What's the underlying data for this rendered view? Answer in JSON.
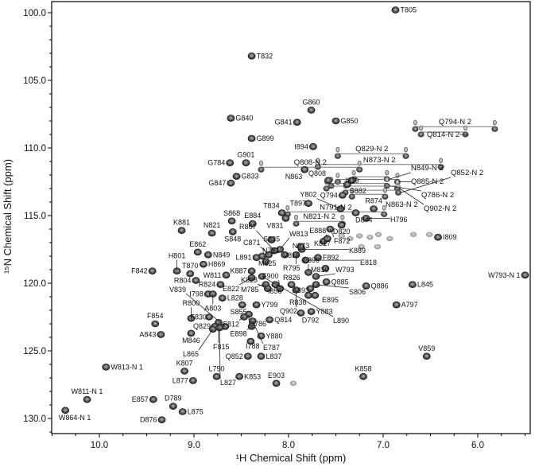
{
  "chart_data": {
    "type": "scatter",
    "title": "",
    "xlabel": "¹H Chemical Shift (ppm)",
    "ylabel": "¹⁵N Chemical Shift (ppm)",
    "xlim": [
      10.5,
      5.45
    ],
    "ylim": [
      99.2,
      131.2
    ],
    "x_reversed": true,
    "y_reversed": true,
    "grid": false,
    "x_ticks": [
      "10.0",
      "9.0",
      "8.0",
      "7.0",
      "6.0"
    ],
    "y_ticks": [
      "100.0",
      "105.0",
      "110.0",
      "115.0",
      "120.0",
      "125.0",
      "130.0"
    ],
    "peak_color": "#1a1a1a",
    "peaks": [
      {
        "label": "T805",
        "h": 6.87,
        "n": 99.8
      },
      {
        "label": "T832",
        "h": 8.39,
        "n": 103.2
      },
      {
        "label": "G860",
        "h": 7.76,
        "n": 107.2
      },
      {
        "label": "G840",
        "h": 8.61,
        "n": 107.8
      },
      {
        "label": "G841",
        "h": 7.91,
        "n": 108.1
      },
      {
        "label": "G850",
        "h": 7.5,
        "n": 108.0
      },
      {
        "label": "G899",
        "h": 8.39,
        "n": 109.3
      },
      {
        "label": "I894",
        "h": 7.74,
        "n": 109.9
      },
      {
        "label": "G784",
        "h": 8.62,
        "n": 111.1
      },
      {
        "label": "G901",
        "h": 8.45,
        "n": 111.1
      },
      {
        "label": "G833",
        "h": 8.55,
        "n": 112.1
      },
      {
        "label": "G847",
        "h": 8.61,
        "n": 112.6
      },
      {
        "label": "N863",
        "h": 7.83,
        "n": 111.6
      },
      {
        "label": "Q808",
        "h": 7.58,
        "n": 112.4
      },
      {
        "label": "S882",
        "h": 7.38,
        "n": 112.7
      },
      {
        "label": "Q794",
        "h": 7.43,
        "n": 113.5
      },
      {
        "label": "I819",
        "h": 7.33,
        "n": 112.4
      },
      {
        "label": "R874",
        "h": 7.1,
        "n": 114.5
      },
      {
        "label": "D844",
        "h": 7.29,
        "n": 114.8
      },
      {
        "label": "Y802",
        "h": 7.45,
        "n": 114.5
      },
      {
        "label": "T897",
        "h": 7.79,
        "n": 114.1
      },
      {
        "label": "T834",
        "h": 8.07,
        "n": 114.8
      },
      {
        "label": "V831",
        "h": 8.03,
        "n": 115.2
      },
      {
        "label": "D820",
        "h": 7.44,
        "n": 115.7
      },
      {
        "label": "F872",
        "h": 7.56,
        "n": 116.0
      },
      {
        "label": "H796",
        "h": 7.18,
        "n": 115.2
      },
      {
        "label": "I809",
        "h": 6.42,
        "n": 116.6
      },
      {
        "label": "W793-N 1",
        "h": 5.5,
        "n": 119.4
      },
      {
        "label": "Q886",
        "h": 7.18,
        "n": 120.2
      },
      {
        "label": "L845",
        "h": 6.69,
        "n": 120.1
      },
      {
        "label": "A797",
        "h": 6.86,
        "n": 121.6
      },
      {
        "label": "V859",
        "h": 6.54,
        "n": 125.4
      },
      {
        "label": "K858",
        "h": 7.21,
        "n": 126.9
      },
      {
        "label": "Y883",
        "h": 7.76,
        "n": 122.1
      },
      {
        "label": "E895",
        "h": 7.72,
        "n": 120.9
      },
      {
        "label": "R836",
        "h": 7.79,
        "n": 120.9
      },
      {
        "label": "Q885",
        "h": 7.6,
        "n": 119.9
      },
      {
        "label": "S806",
        "h": 7.71,
        "n": 120.1
      },
      {
        "label": "W793",
        "h": 7.71,
        "n": 119.5
      },
      {
        "label": "M810",
        "h": 7.61,
        "n": 118.9
      },
      {
        "label": "E896",
        "h": 7.79,
        "n": 119.2
      },
      {
        "label": "K817",
        "h": 7.63,
        "n": 116.9
      },
      {
        "label": "E888",
        "h": 7.59,
        "n": 116.7
      },
      {
        "label": "K889",
        "h": 7.86,
        "n": 117.5
      },
      {
        "label": "F892",
        "h": 7.69,
        "n": 118.1
      },
      {
        "label": "E818",
        "h": 7.82,
        "n": 118.3
      },
      {
        "label": "R795",
        "h": 7.92,
        "n": 117.9
      },
      {
        "label": "N873",
        "h": 7.87,
        "n": 117.3
      },
      {
        "label": "V816",
        "h": 8.04,
        "n": 117.9
      },
      {
        "label": "W813",
        "h": 8.09,
        "n": 117.5
      },
      {
        "label": "S835",
        "h": 8.18,
        "n": 116.8
      },
      {
        "label": "R867",
        "h": 8.15,
        "n": 117.6
      },
      {
        "label": "C871",
        "h": 8.21,
        "n": 117.9
      },
      {
        "label": "N791",
        "h": 8.28,
        "n": 118.0
      },
      {
        "label": "L891",
        "h": 8.34,
        "n": 118.1
      },
      {
        "label": "M825",
        "h": 8.24,
        "n": 118.4
      },
      {
        "label": "R826",
        "h": 7.97,
        "n": 120.1
      },
      {
        "label": "A893",
        "h": 7.77,
        "n": 120.4
      },
      {
        "label": "Q902",
        "h": 7.92,
        "n": 120.5
      },
      {
        "label": "F900",
        "h": 8.09,
        "n": 120.4
      },
      {
        "label": "I856",
        "h": 8.14,
        "n": 120.1
      },
      {
        "label": "M785",
        "h": 8.24,
        "n": 120.1
      },
      {
        "label": "K823",
        "h": 8.22,
        "n": 120.4
      },
      {
        "label": "L890",
        "h": 8.28,
        "n": 119.5
      },
      {
        "label": "K887",
        "h": 8.39,
        "n": 119.1
      },
      {
        "label": "E822",
        "h": 8.39,
        "n": 119.6
      },
      {
        "label": "R824",
        "h": 8.72,
        "n": 120.1
      },
      {
        "label": "W811",
        "h": 8.66,
        "n": 119.4
      },
      {
        "label": "H869",
        "h": 8.9,
        "n": 118.6
      },
      {
        "label": "T870",
        "h": 9.04,
        "n": 119.3
      },
      {
        "label": "R804",
        "h": 8.98,
        "n": 119.8
      },
      {
        "label": "H801",
        "h": 9.18,
        "n": 119.1
      },
      {
        "label": "F842",
        "h": 9.44,
        "n": 119.1
      },
      {
        "label": "E862",
        "h": 8.96,
        "n": 117.7
      },
      {
        "label": "N849",
        "h": 8.85,
        "n": 117.9
      },
      {
        "label": "K881",
        "h": 9.13,
        "n": 116.1
      },
      {
        "label": "N821",
        "h": 8.81,
        "n": 116.3
      },
      {
        "label": "S868",
        "h": 8.6,
        "n": 115.4
      },
      {
        "label": "S848",
        "h": 8.59,
        "n": 116.2
      },
      {
        "label": "E884",
        "h": 8.38,
        "n": 115.6
      },
      {
        "label": "I798",
        "h": 8.85,
        "n": 120.8
      },
      {
        "label": "A803",
        "h": 8.8,
        "n": 120.8
      },
      {
        "label": "L828",
        "h": 8.7,
        "n": 121.1
      },
      {
        "label": "S855",
        "h": 8.49,
        "n": 121.6
      },
      {
        "label": "Y799",
        "h": 8.34,
        "n": 121.6
      },
      {
        "label": "Q786",
        "h": 8.42,
        "n": 122.3
      },
      {
        "label": "F812",
        "h": 8.47,
        "n": 122.5
      },
      {
        "label": "Q814",
        "h": 8.2,
        "n": 122.7
      },
      {
        "label": "E787",
        "h": 8.38,
        "n": 122.8
      },
      {
        "label": "E898",
        "h": 8.39,
        "n": 123.2
      },
      {
        "label": "Y880",
        "h": 8.29,
        "n": 123.9
      },
      {
        "label": "I788",
        "h": 8.4,
        "n": 124.3
      },
      {
        "label": "D792",
        "h": 7.87,
        "n": 122.2
      },
      {
        "label": "F830",
        "h": 8.84,
        "n": 122.5
      },
      {
        "label": "F815",
        "h": 8.74,
        "n": 122.9
      },
      {
        "label": "Q829",
        "h": 8.78,
        "n": 123.2
      },
      {
        "label": "V839",
        "h": 8.67,
        "n": 123.2
      },
      {
        "label": "L865",
        "h": 8.8,
        "n": 123.4
      },
      {
        "label": "L827",
        "h": 8.73,
        "n": 123.3
      },
      {
        "label": "R800",
        "h": 9.03,
        "n": 122.6
      },
      {
        "label": "M846",
        "h": 9.03,
        "n": 123.7
      },
      {
        "label": "F854",
        "h": 9.41,
        "n": 123.0
      },
      {
        "label": "A843",
        "h": 9.35,
        "n": 123.8
      },
      {
        "label": "Q852",
        "h": 8.43,
        "n": 125.4
      },
      {
        "label": "L837",
        "h": 8.29,
        "n": 125.4
      },
      {
        "label": "K807",
        "h": 9.1,
        "n": 126.5
      },
      {
        "label": "L790",
        "h": 8.76,
        "n": 126.9
      },
      {
        "label": "K853",
        "h": 8.52,
        "n": 126.9
      },
      {
        "label": "E903",
        "h": 8.13,
        "n": 127.4
      },
      {
        "label": "L877",
        "h": 9.01,
        "n": 127.2
      },
      {
        "label": "W813-N 1",
        "h": 9.93,
        "n": 126.2
      },
      {
        "label": "W811-N 1",
        "h": 10.13,
        "n": 128.6
      },
      {
        "label": "W864-N 1",
        "h": 10.36,
        "n": 129.4
      },
      {
        "label": "E857",
        "h": 9.43,
        "n": 128.6
      },
      {
        "label": "D789",
        "h": 9.22,
        "n": 129.1
      },
      {
        "label": "L875",
        "h": 9.12,
        "n": 129.5
      },
      {
        "label": "D876",
        "h": 9.34,
        "n": 130.1
      }
    ],
    "sidechain_pairs": [
      {
        "label": "Q794-N 2",
        "h": [
          6.66,
          5.82
        ],
        "n": 108.6
      },
      {
        "label": "Q814-N 2",
        "h": [
          6.6,
          6.13
        ],
        "n": 109.0
      },
      {
        "label": "Q829-N 2",
        "h": [
          7.48,
          6.76
        ],
        "n": 110.6
      },
      {
        "label": "N873-N 2",
        "h": [
          7.69,
          6.39
        ],
        "n": 111.4
      },
      {
        "label": "Q808-N 2",
        "h": [
          8.29,
          7.25
        ],
        "n": 111.6
      },
      {
        "label": "N849-N 2",
        "h": [
          7.31,
          6.96
        ],
        "n": 112.3
      },
      {
        "label": "Q885-N 2",
        "h": [
          7.48,
          6.85
        ],
        "n": 112.5
      },
      {
        "label": "Q786-N 2",
        "h": [
          7.55,
          6.96
        ],
        "n": 112.8
      },
      {
        "label": "Q902-N 2",
        "h": [
          7.6,
          6.85
        ],
        "n": 113.0
      },
      {
        "label": "Q852-N 2",
        "h": [
          7.4,
          6.84
        ],
        "n": 113.3
      },
      {
        "label": "N863-N 2",
        "h": [
          7.33,
          6.98
        ],
        "n": 113.6
      },
      {
        "label": "N791-N 2",
        "h": [
          8.01,
          6.99
        ],
        "n": 114.9
      },
      {
        "label": "N821-N 2",
        "h": [
          7.92,
          7.43
        ],
        "n": 115.6
      }
    ],
    "unassigned_peaks": [
      [
        7.44,
        116.5
      ],
      [
        7.35,
        116.7
      ],
      [
        7.25,
        116.5
      ],
      [
        7.14,
        116.6
      ],
      [
        7.05,
        116.4
      ],
      [
        6.93,
        116.7
      ],
      [
        6.68,
        116.4
      ],
      [
        6.51,
        116.4
      ],
      [
        7.23,
        117.3
      ],
      [
        7.06,
        117.3
      ],
      [
        7.95,
        127.4
      ]
    ]
  }
}
